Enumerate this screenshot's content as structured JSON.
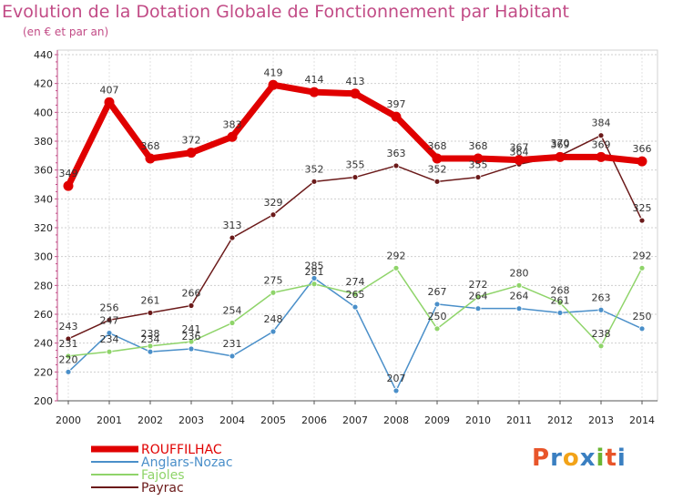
{
  "header": {
    "title": "Evolution de la Dotation Globale de Fonctionnement par Habitant",
    "subtitle": "(en € et par an)"
  },
  "logo": {
    "text": "Proxiti",
    "colors": [
      "#e8552a",
      "#3a7fc1",
      "#f2a319",
      "#3a7fc1",
      "#6ab533",
      "#e8552a",
      "#3a7fc1"
    ]
  },
  "chart_data": {
    "type": "line",
    "title": "Evolution de la Dotation Globale de Fonctionnement par Habitant",
    "subtitle": "(en € et par an)",
    "xlabel": "",
    "ylabel": "",
    "x": [
      "2000",
      "2001",
      "2002",
      "2003",
      "2004",
      "2005",
      "2006",
      "2007",
      "2008",
      "2009",
      "2010",
      "2011",
      "2012",
      "2013",
      "2014"
    ],
    "ylim": [
      200,
      440
    ],
    "yticks": [
      200,
      220,
      240,
      260,
      280,
      300,
      320,
      340,
      360,
      380,
      400,
      420,
      440
    ],
    "grid": true,
    "legend_position": "bottom-left",
    "series": [
      {
        "name": "ROUFFILHAC",
        "color": "#e00000",
        "values": [
          349,
          407,
          368,
          372,
          383,
          419,
          414,
          413,
          397,
          368,
          368,
          367,
          369,
          369,
          366
        ]
      },
      {
        "name": "Anglars-Nozac",
        "color": "#4a8fc9",
        "values": [
          220,
          247,
          234,
          236,
          231,
          248,
          285,
          265,
          207,
          267,
          264,
          264,
          261,
          263,
          250
        ]
      },
      {
        "name": "Fajoles",
        "color": "#8fd46a",
        "values": [
          231,
          234,
          238,
          241,
          254,
          275,
          281,
          274,
          292,
          250,
          272,
          280,
          268,
          238,
          292
        ]
      },
      {
        "name": "Payrac",
        "color": "#6b1a1a",
        "values": [
          243,
          256,
          261,
          266,
          313,
          329,
          352,
          355,
          363,
          352,
          355,
          364,
          370,
          384,
          325
        ]
      }
    ]
  }
}
